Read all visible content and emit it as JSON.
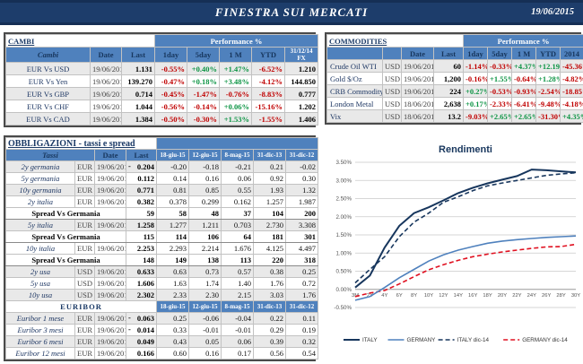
{
  "header": {
    "title": "FINESTRA SUI MERCATI",
    "date": "19/06/2015"
  },
  "colors": {
    "navy": "#17365d",
    "steel_blue": "#4f81bd",
    "positive_green": "#0c9444",
    "negative_red": "#c00000",
    "germany_dec_red": "#e01020",
    "header_bar": "#1d3d6b"
  },
  "cambi": {
    "title": "CAMBI",
    "perf_header": "Performance  %",
    "columns": [
      "Cambi",
      "Date",
      "Last",
      "1day",
      "5day",
      "1 M",
      "YTD",
      "31/12/14 FX"
    ],
    "rows": [
      {
        "name": "EUR Vs USD",
        "date": "19/06/2015",
        "last": "1.131",
        "perf": [
          "-0.55%",
          "+0.40%",
          "+1.47%",
          "-6.52%"
        ],
        "fx": "1.210"
      },
      {
        "name": "EUR Vs Yen",
        "date": "19/06/2015",
        "last": "139.270",
        "perf": [
          "-0.47%",
          "+0.18%",
          "+3.48%",
          "-4.12%"
        ],
        "fx": "144.850"
      },
      {
        "name": "EUR Vs GBP",
        "date": "19/06/2015",
        "last": "0.714",
        "perf": [
          "-0.45%",
          "-1.47%",
          "-0.76%",
          "-8.83%"
        ],
        "fx": "0.777"
      },
      {
        "name": "EUR Vs CHF",
        "date": "19/06/2015",
        "last": "1.044",
        "perf": [
          "-0.56%",
          "-0.14%",
          "+0.06%",
          "-15.16%"
        ],
        "fx": "1.202"
      },
      {
        "name": "EUR Vs CAD",
        "date": "19/06/2015",
        "last": "1.384",
        "perf": [
          "-0.50%",
          "-0.30%",
          "+1.53%",
          "-1.55%"
        ],
        "fx": "1.406"
      }
    ]
  },
  "commodities": {
    "title": "COMMODITIES",
    "perf_header": "Performance  %",
    "columns": [
      "",
      "",
      "Date",
      "Last",
      "1day",
      "5day",
      "1 M",
      "YTD",
      "2014"
    ],
    "rows": [
      {
        "name": "Crude Oil WTI",
        "ccy": "USD",
        "date": "19/06/2015",
        "last": "60",
        "perf": [
          "-1.14%",
          "-0.33%",
          "+4.37%",
          "+12.19%",
          "-45.36%"
        ]
      },
      {
        "name": "Gold $/Oz",
        "ccy": "USD",
        "date": "19/06/2015",
        "last": "1,200",
        "perf": [
          "-0.16%",
          "+1.55%",
          "-0.64%",
          "+1.28%",
          "-4.82%"
        ]
      },
      {
        "name": "CRB Commodity",
        "ccy": "USD",
        "date": "19/06/2015",
        "last": "224",
        "perf": [
          "+0.27%",
          "-0.53%",
          "-0.93%",
          "-2.54%",
          "-18.85%"
        ]
      },
      {
        "name": "London Metal",
        "ccy": "USD",
        "date": "18/06/2015",
        "last": "2,638",
        "perf": [
          "+0.17%",
          "-2.33%",
          "-6.41%",
          "-9.48%",
          "-4.18%"
        ]
      },
      {
        "name": "Vix",
        "ccy": "USD",
        "date": "18/06/2015",
        "last": "13.2",
        "perf": [
          "-9.03%",
          "+2.65%",
          "+2.65%",
          "-31.30%",
          "+4.35%"
        ]
      }
    ]
  },
  "obbligazioni": {
    "title": "OBBLIGAZIONI - tassi e spread",
    "columns": [
      "Tassi",
      "Date",
      "Last",
      "18-giu-15",
      "12-giu-15",
      "8-mag-15",
      "31-dic-13",
      "31-dic-12"
    ],
    "rows": [
      {
        "type": "rate",
        "name": "2y germania",
        "ccy": "EUR",
        "date": "19/06/2015",
        "last": "0.204",
        "last_neg": true,
        "values": [
          "-0.20",
          "-0.18",
          "-0.21",
          "0.21",
          "-0.02"
        ]
      },
      {
        "type": "rate",
        "name": "5y germania",
        "ccy": "EUR",
        "date": "19/06/2015",
        "last": "0.112",
        "last_neg": false,
        "values": [
          "0.14",
          "0.16",
          "0.06",
          "0.92",
          "0.30"
        ]
      },
      {
        "type": "rate",
        "name": "10y germania",
        "ccy": "EUR",
        "date": "19/06/2015",
        "last": "0.771",
        "last_neg": false,
        "values": [
          "0.81",
          "0.85",
          "0.55",
          "1.93",
          "1.32"
        ]
      },
      {
        "type": "rate",
        "name": "2y italia",
        "ccy": "EUR",
        "date": "19/06/2015",
        "last": "0.382",
        "last_neg": false,
        "values": [
          "0.378",
          "0.299",
          "0.162",
          "1.257",
          "1.987"
        ]
      },
      {
        "type": "spread",
        "name": "Spread Vs Germania",
        "last": "59",
        "values": [
          "58",
          "48",
          "37",
          "104",
          "200"
        ]
      },
      {
        "type": "rate",
        "name": "5y italia",
        "ccy": "EUR",
        "date": "19/06/2015",
        "last": "1.258",
        "last_neg": false,
        "values": [
          "1.277",
          "1.211",
          "0.703",
          "2.730",
          "3.308"
        ]
      },
      {
        "type": "spread",
        "name": "Spread Vs Germania",
        "last": "115",
        "values": [
          "114",
          "106",
          "64",
          "181",
          "301"
        ]
      },
      {
        "type": "rate",
        "name": "10y italia",
        "ccy": "EUR",
        "date": "19/06/2015",
        "last": "2.253",
        "last_neg": false,
        "values": [
          "2.293",
          "2.214",
          "1.676",
          "4.125",
          "4.497"
        ]
      },
      {
        "type": "spread",
        "name": "Spread Vs Germania",
        "last": "148",
        "values": [
          "149",
          "138",
          "113",
          "220",
          "318"
        ]
      },
      {
        "type": "rate",
        "name": "2y usa",
        "ccy": "USD",
        "date": "19/06/2015",
        "last": "0.633",
        "last_neg": false,
        "values": [
          "0.63",
          "0.73",
          "0.57",
          "0.38",
          "0.25"
        ]
      },
      {
        "type": "rate",
        "name": "5y usa",
        "ccy": "USD",
        "date": "19/06/2015",
        "last": "1.606",
        "last_neg": false,
        "values": [
          "1.63",
          "1.74",
          "1.40",
          "1.76",
          "0.72"
        ]
      },
      {
        "type": "rate",
        "name": "10y usa",
        "ccy": "USD",
        "date": "19/06/2015",
        "last": "2.302",
        "last_neg": false,
        "values": [
          "2.33",
          "2.30",
          "2.15",
          "3.03",
          "1.76"
        ]
      }
    ]
  },
  "euribor": {
    "title": "EURIBOR",
    "columns": [
      "18-giu-15",
      "12-giu-15",
      "8-mag-15",
      "31-dic-13",
      "31-dic-12"
    ],
    "rows": [
      {
        "name": "Euribor 1 mese",
        "ccy": "EUR",
        "date": "19/06/2015",
        "last": "0.063",
        "last_neg": true,
        "values": [
          "0.25",
          "-0.06",
          "-0.04",
          "0.22",
          "0.11"
        ]
      },
      {
        "name": "Euribor 3 mesi",
        "ccy": "EUR",
        "date": "19/06/2015",
        "last": "0.014",
        "last_neg": true,
        "values": [
          "0.33",
          "-0.01",
          "-0.01",
          "0.29",
          "0.19"
        ]
      },
      {
        "name": "Euribor 6 mesi",
        "ccy": "EUR",
        "date": "19/06/2015",
        "last": "0.049",
        "last_neg": false,
        "values": [
          "0.43",
          "0.05",
          "0.06",
          "0.39",
          "0.32"
        ]
      },
      {
        "name": "Euribor 12 mesi",
        "ccy": "EUR",
        "date": "19/06/2015",
        "last": "0.166",
        "last_neg": false,
        "values": [
          "0.60",
          "0.16",
          "0.17",
          "0.56",
          "0.54"
        ]
      }
    ]
  },
  "chart_data": {
    "type": "line",
    "title": "Rendimenti",
    "x_categories": [
      "3M",
      "2Y",
      "4Y",
      "6Y",
      "8Y",
      "10Y",
      "12Y",
      "14Y",
      "16Y",
      "18Y",
      "20Y",
      "22Y",
      "24Y",
      "26Y",
      "28Y",
      "30Y"
    ],
    "ylim": [
      -0.5,
      3.5
    ],
    "y_tick_step": 0.5,
    "y_tick_format": "percent_2dp",
    "grid": true,
    "legend_position": "bottom",
    "series": [
      {
        "name": "ITALY",
        "color": "#17365d",
        "dash": false,
        "width": 2,
        "values": [
          0.05,
          0.38,
          1.15,
          1.75,
          2.1,
          2.26,
          2.45,
          2.65,
          2.8,
          2.92,
          3.02,
          3.12,
          3.3,
          3.28,
          3.25,
          3.22
        ]
      },
      {
        "name": "GERMANY",
        "color": "#4f81bd",
        "dash": false,
        "width": 1.6,
        "values": [
          -0.3,
          -0.2,
          0.05,
          0.32,
          0.55,
          0.78,
          0.95,
          1.08,
          1.18,
          1.27,
          1.33,
          1.37,
          1.4,
          1.43,
          1.45,
          1.47
        ]
      },
      {
        "name": "ITALY dic-14",
        "color": "#17365d",
        "dash": true,
        "width": 1.6,
        "values": [
          0.18,
          0.55,
          0.9,
          1.45,
          1.85,
          2.1,
          2.4,
          2.55,
          2.72,
          2.85,
          2.93,
          3.0,
          3.07,
          3.14,
          3.18,
          3.21
        ]
      },
      {
        "name": "GERMANY dic-14",
        "color": "#e01020",
        "dash": true,
        "width": 1.6,
        "values": [
          -0.2,
          -0.1,
          -0.03,
          0.15,
          0.35,
          0.54,
          0.68,
          0.8,
          0.9,
          0.97,
          1.03,
          1.08,
          1.13,
          1.17,
          1.18,
          1.24
        ]
      }
    ]
  }
}
